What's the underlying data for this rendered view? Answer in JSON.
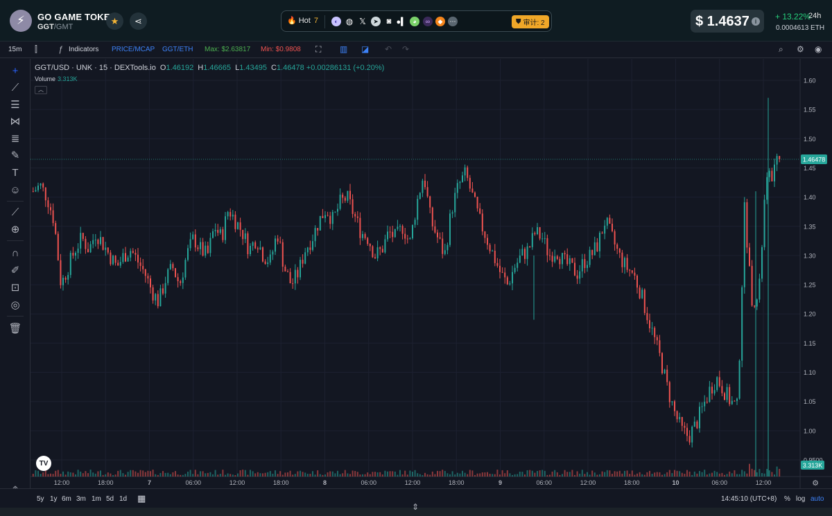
{
  "header": {
    "token_name": "GO GAME TOKEN",
    "pair_base": "GGT",
    "pair_sep": "/",
    "pair_quote": "GMT",
    "hot_label": "Hot",
    "hot_count": "7",
    "audit_label": "审计: 2",
    "price": "$ 1.4637",
    "change": "+ 13.22%",
    "change_period": "24h",
    "eth_price": "0.0004613  ETH",
    "colors": {
      "up": "#26d07c",
      "audit": "#f0a728",
      "star": "#f5b536"
    }
  },
  "toolbar": {
    "interval": "15m",
    "indicators": "Indicators",
    "price_mcap": "PRICE/MCAP",
    "ggt_eth": "GGT/ETH",
    "max": "Max: $2.63817",
    "min": "Min: $0.9808"
  },
  "legend": {
    "symbol": "GGT/USD · UNK · 15 · DEXTools.io",
    "o_label": "O",
    "o": "1.46192",
    "h_label": "H",
    "h": "1.46665",
    "l_label": "L",
    "l": "1.43495",
    "c_label": "C",
    "c": "1.46478",
    "change": "+0.00286131 (+0.20%)",
    "volume_label": "Volume",
    "volume": "3.313K"
  },
  "bottom": {
    "ranges": [
      "5y",
      "1y",
      "6m",
      "3m",
      "1m",
      "5d",
      "1d"
    ],
    "time": "14:45:10 (UTC+8)",
    "pct": "%",
    "log": "log",
    "auto": "auto"
  },
  "chart_data": {
    "type": "candlestick",
    "y_ticks": [
      "1.60",
      "1.55",
      "1.50",
      "1.45",
      "1.40",
      "1.35",
      "1.30",
      "1.25",
      "1.20",
      "1.15",
      "1.10",
      "1.05",
      "1.00",
      "0.9500"
    ],
    "ylim": [
      0.94,
      1.63
    ],
    "x_ticks": [
      "12:00",
      "18:00",
      "7",
      "06:00",
      "12:00",
      "18:00",
      "8",
      "06:00",
      "12:00",
      "18:00",
      "9",
      "06:00",
      "12:00",
      "18:00",
      "10",
      "06:00",
      "12:00"
    ],
    "last_price_label": "1.46478",
    "last_price": 1.46478,
    "volume_label": "3.313K",
    "close_path": [
      1.41,
      1.42,
      1.4,
      1.36,
      1.25,
      1.28,
      1.31,
      1.33,
      1.31,
      1.34,
      1.32,
      1.3,
      1.28,
      1.3,
      1.31,
      1.29,
      1.27,
      1.24,
      1.22,
      1.26,
      1.28,
      1.25,
      1.3,
      1.33,
      1.31,
      1.3,
      1.35,
      1.33,
      1.38,
      1.36,
      1.34,
      1.31,
      1.33,
      1.3,
      1.29,
      1.34,
      1.28,
      1.25,
      1.27,
      1.31,
      1.33,
      1.36,
      1.38,
      1.36,
      1.39,
      1.4,
      1.37,
      1.34,
      1.33,
      1.3,
      1.31,
      1.34,
      1.33,
      1.35,
      1.32,
      1.39,
      1.44,
      1.36,
      1.33,
      1.3,
      1.38,
      1.42,
      1.44,
      1.4,
      1.36,
      1.33,
      1.3,
      1.27,
      1.25,
      1.28,
      1.3,
      1.31,
      1.34,
      1.33,
      1.3,
      1.31,
      1.29,
      1.28,
      1.27,
      1.29,
      1.3,
      1.32,
      1.36,
      1.33,
      1.3,
      1.28,
      1.27,
      1.24,
      1.2,
      1.16,
      1.12,
      1.07,
      1.03,
      1.0,
      0.99,
      1.01,
      1.04,
      1.07,
      1.09,
      1.07,
      1.05,
      1.04,
      1.38,
      1.23,
      1.22,
      1.42,
      1.44,
      1.46478
    ]
  }
}
